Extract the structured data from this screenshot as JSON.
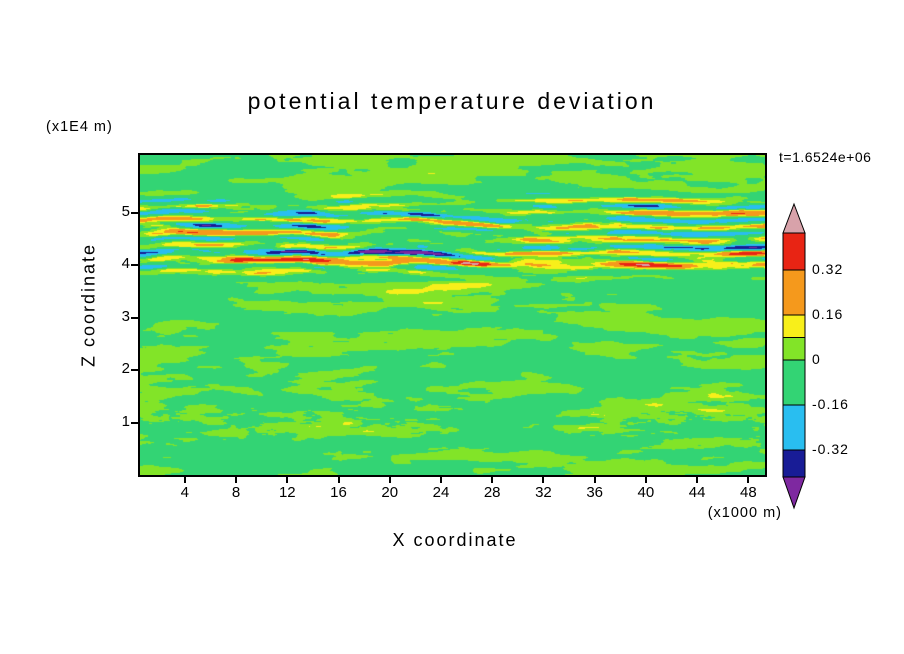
{
  "chart_data": {
    "type": "heatmap",
    "title": "potential temperature deviation",
    "time_annotation": "t=1.6524e+06",
    "xlabel": "X coordinate",
    "xunit": "(x1000 m)",
    "zlabel": "Z coordinate",
    "zunit": "(x1E4 m)",
    "x_ticks": [
      4,
      8,
      12,
      16,
      20,
      24,
      28,
      32,
      36,
      40,
      44,
      48
    ],
    "z_ticks": [
      1,
      2,
      3,
      4,
      5
    ],
    "x_range": [
      0.5,
      49.3
    ],
    "z_range": [
      0,
      6.1
    ],
    "grid": false,
    "legend_position": "right-colorbar",
    "colorbar_tick_labels": [
      "0.32",
      "0.16",
      "0",
      "-0.16",
      "-0.32"
    ],
    "colorbar_tick_values": [
      0.32,
      0.16,
      0,
      -0.16,
      -0.32
    ],
    "levels": [
      0.46,
      0.32,
      0.16,
      0.08,
      0,
      -0.16,
      -0.32,
      -0.42
    ],
    "band_colors_hex": [
      "#d8a2aa",
      "#e82414",
      "#f5991c",
      "#f8ef1a",
      "#82e428",
      "#33d474",
      "#29bef0",
      "#181c96",
      "#7e28a0"
    ],
    "background_field_color": "#33d474",
    "axis_color": "#000000",
    "field_description": "Near-zero (green/lime) field over most of the domain, with strong alternating positive (red/orange/pink) and negative (cyan/navy/purple) horizontally elongated wave-breaking streaks between z=3.9e4 m and z=5.3e4 m, a continuous positive red-orange layer near z=4.0e4 m, and weak small-scale speckle near z=1e4 m.",
    "amplitude_profile": [
      {
        "z": 0.0,
        "a": 0
      },
      {
        "z": 3.65,
        "a": 0
      },
      {
        "z": 3.85,
        "a": 0.55
      },
      {
        "z": 4.0,
        "a": 0.95
      },
      {
        "z": 4.2,
        "a": 1.0
      },
      {
        "z": 4.5,
        "a": 0.85
      },
      {
        "z": 4.75,
        "a": 0.95
      },
      {
        "z": 5.0,
        "a": 1.0
      },
      {
        "z": 5.2,
        "a": 0.75
      },
      {
        "z": 5.35,
        "a": 0.3
      },
      {
        "z": 5.5,
        "a": 0.05
      },
      {
        "z": 6.1,
        "a": 0
      }
    ]
  }
}
